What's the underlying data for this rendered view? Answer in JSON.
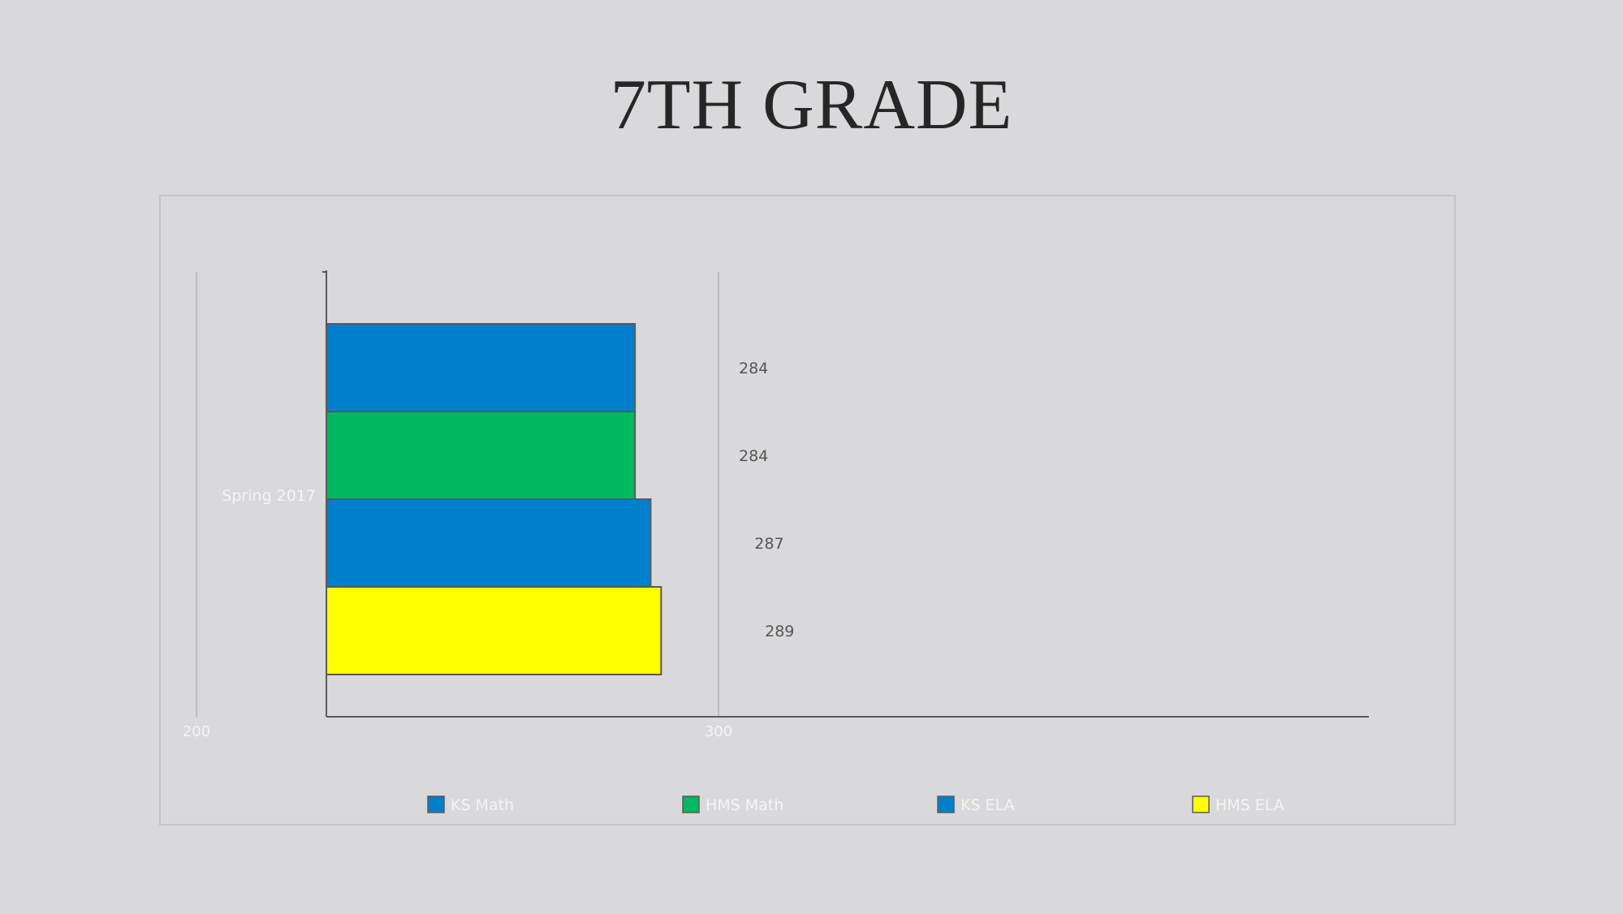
{
  "slide": {
    "title": "7TH GRADE"
  },
  "chart_data": {
    "type": "bar",
    "orientation": "horizontal",
    "categories": [
      "Spring 2017"
    ],
    "series": [
      {
        "name": "KS Math",
        "values": [
          284
        ],
        "color": "#0080cc"
      },
      {
        "name": "HMS Math",
        "values": [
          284
        ],
        "color": "#00b960"
      },
      {
        "name": "KS ELA",
        "values": [
          287
        ],
        "color": "#0080cc"
      },
      {
        "name": "HMS ELA",
        "values": [
          289
        ],
        "color": "#ffff00"
      }
    ],
    "data_labels": [
      "284",
      "284",
      "287",
      "289"
    ],
    "x_ticks": [
      "200",
      "300"
    ],
    "xlim": [
      200,
      400
    ],
    "grid": true,
    "legend_position": "bottom"
  }
}
